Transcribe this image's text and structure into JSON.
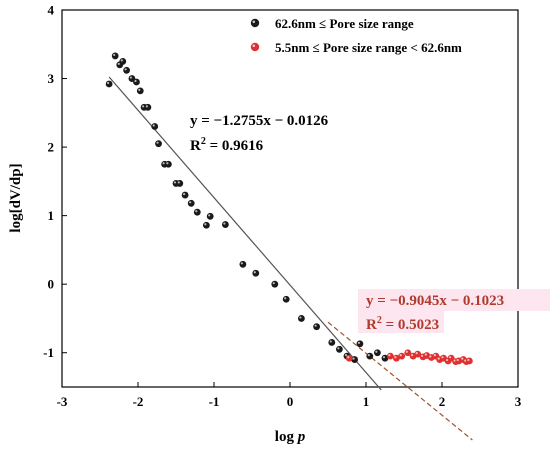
{
  "chart_data": {
    "type": "scatter",
    "title": "",
    "xlabel": "log p",
    "ylabel": "log[dV/dp]",
    "xlim": [
      -3,
      3
    ],
    "ylim": [
      -1.5,
      4
    ],
    "xticks": [
      -3,
      -2,
      -1,
      0,
      1,
      2,
      3
    ],
    "yticks": [
      -1,
      0,
      1,
      2,
      3,
      4
    ],
    "grid": false,
    "legend_position": "top-right",
    "series": [
      {
        "name": "62.6nm ≤ Pore size range",
        "color": "#1a1a1a",
        "points": [
          [
            -2.38,
            2.92
          ],
          [
            -2.3,
            3.33
          ],
          [
            -2.24,
            3.2
          ],
          [
            -2.2,
            3.25
          ],
          [
            -2.15,
            3.12
          ],
          [
            -2.08,
            3.0
          ],
          [
            -2.02,
            2.95
          ],
          [
            -1.97,
            2.82
          ],
          [
            -1.92,
            2.58
          ],
          [
            -1.87,
            2.58
          ],
          [
            -1.78,
            2.3
          ],
          [
            -1.73,
            2.05
          ],
          [
            -1.65,
            1.75
          ],
          [
            -1.6,
            1.75
          ],
          [
            -1.5,
            1.47
          ],
          [
            -1.45,
            1.47
          ],
          [
            -1.38,
            1.3
          ],
          [
            -1.3,
            1.18
          ],
          [
            -1.22,
            1.05
          ],
          [
            -1.1,
            0.86
          ],
          [
            -1.05,
            0.99
          ],
          [
            -0.85,
            0.87
          ],
          [
            -0.62,
            0.29
          ],
          [
            -0.45,
            0.16
          ],
          [
            -0.2,
            0.0
          ],
          [
            -0.05,
            -0.22
          ],
          [
            0.15,
            -0.5
          ],
          [
            0.35,
            -0.62
          ],
          [
            0.55,
            -0.85
          ],
          [
            0.65,
            -0.95
          ],
          [
            0.75,
            -1.05
          ],
          [
            0.85,
            -1.1
          ],
          [
            0.92,
            -0.87
          ],
          [
            1.05,
            -1.05
          ],
          [
            1.15,
            -1.0
          ],
          [
            1.25,
            -1.08
          ]
        ],
        "fit": {
          "equation": "y = −1.2755x − 0.0126",
          "r2_label": "R",
          "r2_sup": "2",
          "r2_value": " = 0.9616",
          "slope": -1.2755,
          "intercept": -0.0126,
          "x_range": [
            -2.38,
            1.2
          ],
          "color": "#555555"
        }
      },
      {
        "name": "5.5nm ≤  Pore size range < 62.6nm",
        "color": "#e03030",
        "points": [
          [
            0.78,
            -1.08
          ],
          [
            1.32,
            -1.05
          ],
          [
            1.4,
            -1.08
          ],
          [
            1.47,
            -1.05
          ],
          [
            1.55,
            -1.0
          ],
          [
            1.62,
            -1.05
          ],
          [
            1.68,
            -1.02
          ],
          [
            1.75,
            -1.06
          ],
          [
            1.8,
            -1.04
          ],
          [
            1.86,
            -1.07
          ],
          [
            1.92,
            -1.05
          ],
          [
            1.97,
            -1.1
          ],
          [
            2.02,
            -1.08
          ],
          [
            2.08,
            -1.12
          ],
          [
            2.12,
            -1.08
          ],
          [
            2.18,
            -1.13
          ],
          [
            2.22,
            -1.12
          ],
          [
            2.28,
            -1.1
          ],
          [
            2.32,
            -1.13
          ],
          [
            2.36,
            -1.12
          ]
        ],
        "fit": {
          "equation": "y = −0.9045x − 0.1023",
          "r2_label": "R",
          "r2_sup": "2",
          "r2_value": " = 0.5023",
          "slope": -0.9045,
          "intercept": -0.1023,
          "x_range": [
            0.5,
            2.4
          ],
          "color": "#a0522d"
        }
      }
    ]
  }
}
